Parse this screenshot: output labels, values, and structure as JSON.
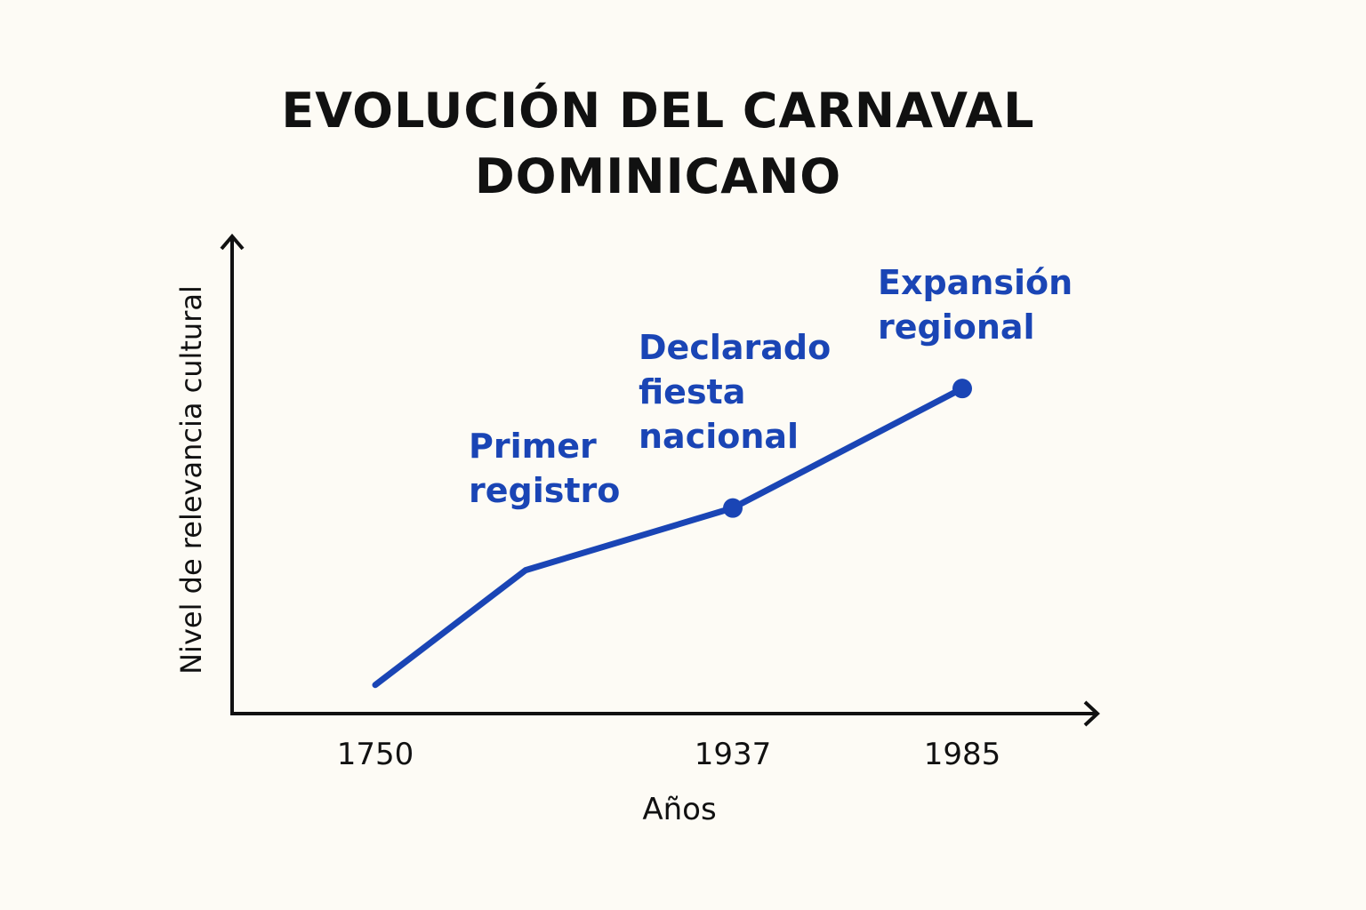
{
  "chart_data": {
    "type": "line",
    "title": "EVOLUCIÓN DEL CARNAVAL DOMINICANO",
    "x_label": "Años",
    "y_label": "Nivel de relevancia cultural",
    "categories": [
      "1750",
      null,
      "1937",
      "1985"
    ],
    "series": [
      {
        "color": "#1a45b5",
        "values": [
          6,
          30,
          43,
          68
        ]
      }
    ],
    "ylim": [
      0,
      100
    ],
    "markers": [
      2,
      3
    ],
    "annotations": [
      "Primer registro",
      "Declarado fiesta nacional",
      "Expansión regional"
    ]
  }
}
